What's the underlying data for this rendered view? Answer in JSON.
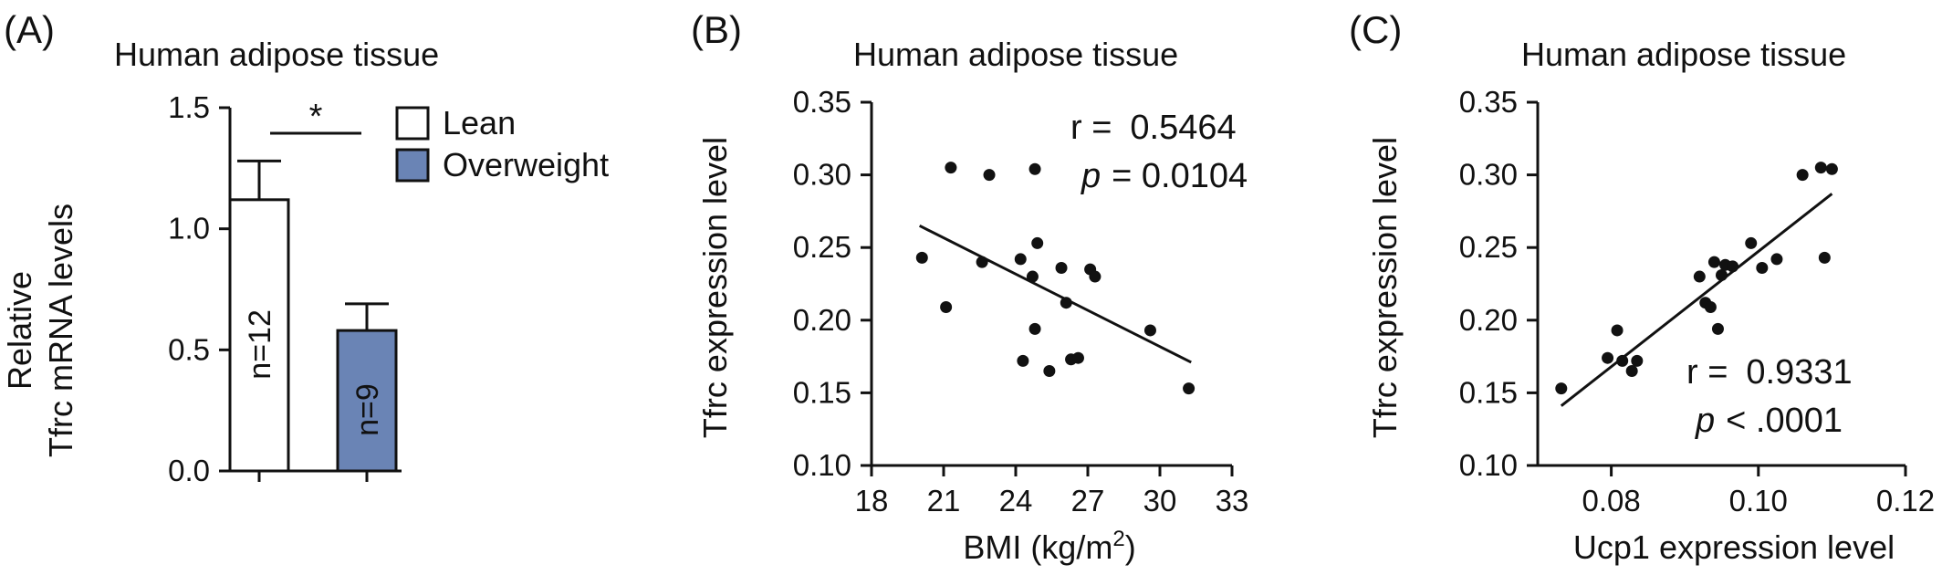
{
  "chart_data": [
    {
      "panel": "(A)",
      "type": "bar",
      "title": "Human adipose tissue",
      "ylabel_line1": "Relative",
      "ylabel_line2": "Tfrc mRNA levels",
      "ylim": [
        0,
        1.5
      ],
      "yticks": [
        "0.0",
        "0.5",
        "1.0",
        "1.5"
      ],
      "categories": [
        "Lean",
        "Overweight"
      ],
      "values": [
        1.12,
        0.58
      ],
      "errors": [
        0.16,
        0.11
      ],
      "bar_labels": [
        "n=12",
        "n=9"
      ],
      "colors": [
        "#ffffff",
        "#6a84b5"
      ],
      "legend": [
        "Lean",
        "Overweight"
      ],
      "legend_position": "top-right",
      "significance": "*"
    },
    {
      "panel": "(B)",
      "type": "scatter",
      "title": "Human adipose tissue",
      "xlabel": "BMI (kg/m",
      "xlabel_sup": "2",
      "xlabel_end": ")",
      "ylabel": "Tfrc expression level",
      "xlim": [
        18,
        33
      ],
      "ylim": [
        0.1,
        0.35
      ],
      "xticks": [
        "18",
        "21",
        "24",
        "27",
        "30",
        "33"
      ],
      "yticks": [
        "0.10",
        "0.15",
        "0.20",
        "0.25",
        "0.30",
        "0.35"
      ],
      "stats": {
        "r_label": "r =",
        "r_value": "0.5464",
        "p_label": "p",
        "p_value": "= 0.0104"
      },
      "points": [
        [
          20.1,
          0.243
        ],
        [
          21.1,
          0.209
        ],
        [
          21.3,
          0.305
        ],
        [
          22.6,
          0.24
        ],
        [
          22.9,
          0.3
        ],
        [
          24.2,
          0.242
        ],
        [
          24.3,
          0.172
        ],
        [
          24.7,
          0.23
        ],
        [
          24.8,
          0.304
        ],
        [
          24.8,
          0.194
        ],
        [
          24.9,
          0.253
        ],
        [
          25.4,
          0.165
        ],
        [
          25.9,
          0.236
        ],
        [
          26.1,
          0.212
        ],
        [
          26.3,
          0.173
        ],
        [
          26.6,
          0.174
        ],
        [
          27.1,
          0.235
        ],
        [
          27.3,
          0.23
        ],
        [
          29.6,
          0.193
        ],
        [
          31.2,
          0.153
        ]
      ],
      "fit": {
        "x": [
          20.0,
          31.3
        ],
        "y": [
          0.265,
          0.171
        ]
      }
    },
    {
      "panel": "(C)",
      "type": "scatter",
      "title": "Human adipose tissue",
      "xlabel": "Ucp1 expression level",
      "ylabel": "Tfrc expression level",
      "xlim": [
        0.07,
        0.12
      ],
      "ylim": [
        0.1,
        0.35
      ],
      "xticks": [
        "0.08",
        "0.10",
        "0.12"
      ],
      "yticks": [
        "0.10",
        "0.15",
        "0.20",
        "0.25",
        "0.30",
        "0.35"
      ],
      "stats": {
        "r_label": "r =",
        "r_value": "0.9331",
        "p_label": "p",
        "p_value": "< .0001"
      },
      "points": [
        [
          0.0732,
          0.153
        ],
        [
          0.0795,
          0.174
        ],
        [
          0.0808,
          0.193
        ],
        [
          0.0815,
          0.172
        ],
        [
          0.0828,
          0.165
        ],
        [
          0.0835,
          0.172
        ],
        [
          0.092,
          0.23
        ],
        [
          0.0928,
          0.212
        ],
        [
          0.0935,
          0.209
        ],
        [
          0.094,
          0.24
        ],
        [
          0.0945,
          0.194
        ],
        [
          0.095,
          0.231
        ],
        [
          0.0955,
          0.238
        ],
        [
          0.0965,
          0.237
        ],
        [
          0.099,
          0.253
        ],
        [
          0.1005,
          0.236
        ],
        [
          0.1025,
          0.242
        ],
        [
          0.106,
          0.3
        ],
        [
          0.1085,
          0.305
        ],
        [
          0.109,
          0.243
        ],
        [
          0.11,
          0.304
        ]
      ],
      "fit": {
        "x": [
          0.0732,
          0.11
        ],
        "y": [
          0.141,
          0.287
        ]
      }
    }
  ]
}
